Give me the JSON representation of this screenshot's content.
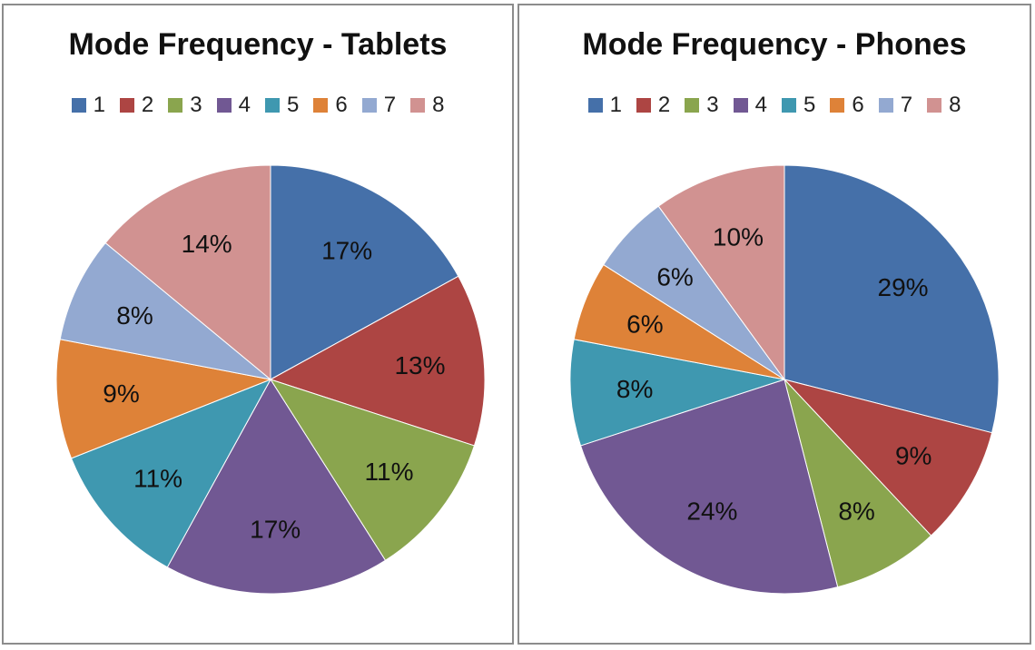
{
  "chart_data": [
    {
      "type": "pie",
      "title": "Mode Frequency - Tablets",
      "categories": [
        "1",
        "2",
        "3",
        "4",
        "5",
        "6",
        "7",
        "8"
      ],
      "values": [
        17,
        13,
        11,
        17,
        11,
        9,
        8,
        14
      ],
      "labels": [
        "17%",
        "13%",
        "11%",
        "17%",
        "11%",
        "9%",
        "8%",
        "14%"
      ],
      "legend_position": "top",
      "colors": [
        "#4570a9",
        "#ad4543",
        "#8aa54e",
        "#715893",
        "#3f98b0",
        "#de8238",
        "#93a9d1",
        "#d19291"
      ]
    },
    {
      "type": "pie",
      "title": "Mode Frequency - Phones",
      "categories": [
        "1",
        "2",
        "3",
        "4",
        "5",
        "6",
        "7",
        "8"
      ],
      "values": [
        29,
        9,
        8,
        24,
        8,
        6,
        6,
        10
      ],
      "labels": [
        "29%",
        "9%",
        "8%",
        "24%",
        "8%",
        "6%",
        "6%",
        "10%"
      ],
      "legend_position": "top",
      "colors": [
        "#4570a9",
        "#ad4543",
        "#8aa54e",
        "#715893",
        "#3f98b0",
        "#de8238",
        "#93a9d1",
        "#d19291"
      ]
    }
  ]
}
